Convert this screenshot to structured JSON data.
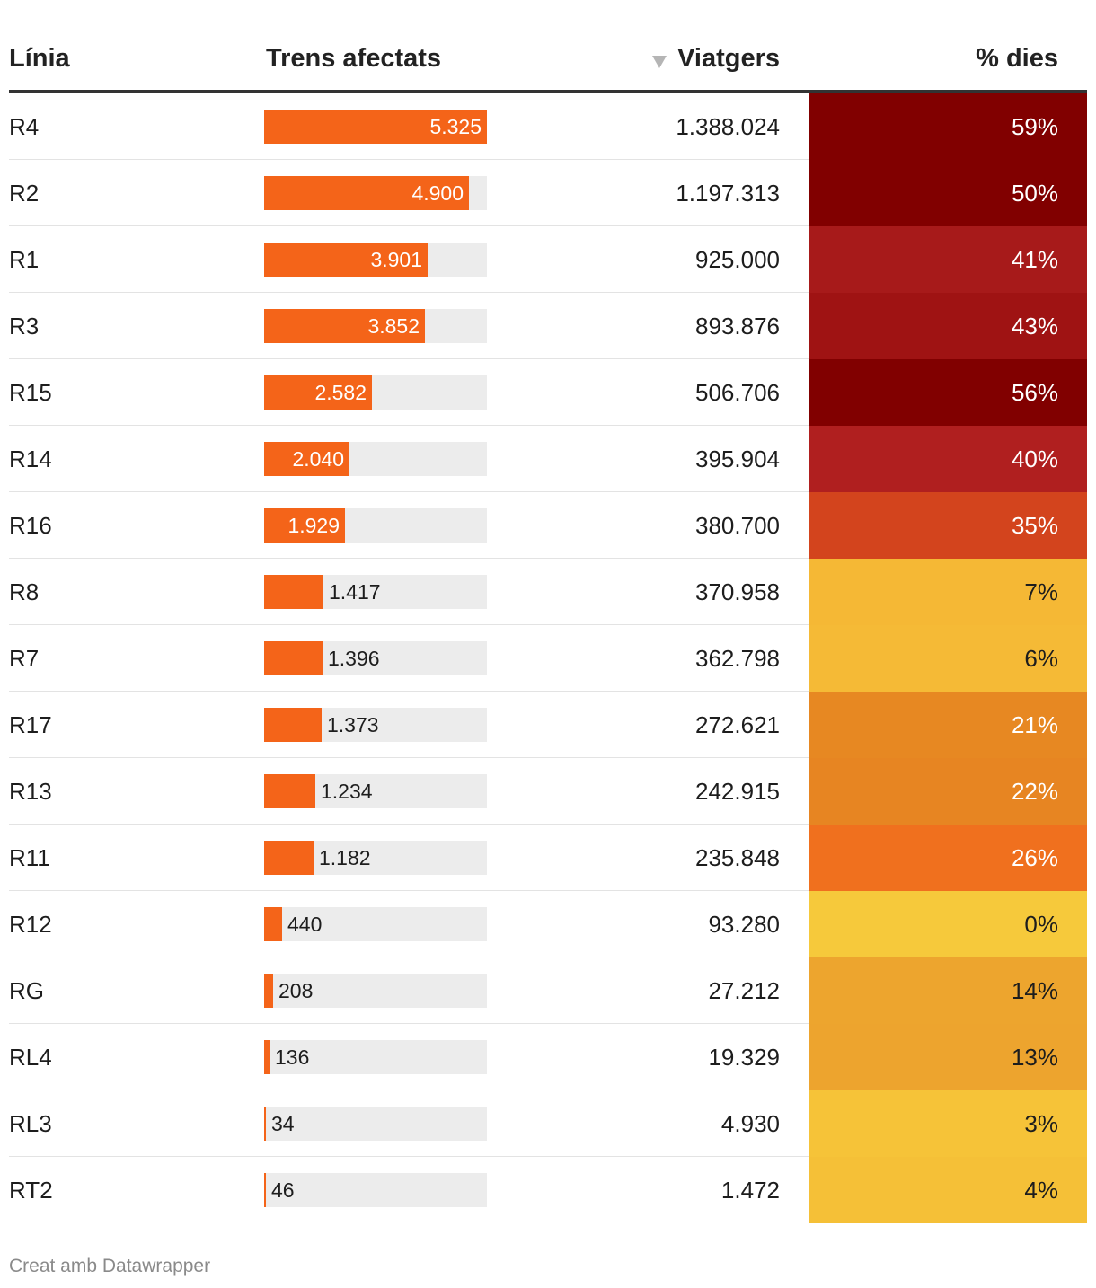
{
  "chart_data": {
    "type": "table",
    "columns": [
      "Línia",
      "Trens afectats",
      "Viatgers",
      "% dies"
    ],
    "sorted_by": "Viatgers",
    "bar_max": 5325,
    "rows": [
      {
        "line": "R4",
        "trens": 5325,
        "trens_label": "5.325",
        "viatgers": "1.388.024",
        "dies": 59,
        "dies_label": "59%",
        "color": "#810000"
      },
      {
        "line": "R2",
        "trens": 4900,
        "trens_label": "4.900",
        "viatgers": "1.197.313",
        "dies": 50,
        "dies_label": "50%",
        "color": "#810000"
      },
      {
        "line": "R1",
        "trens": 3901,
        "trens_label": "3.901",
        "viatgers": "925.000",
        "dies": 41,
        "dies_label": "41%",
        "color": "#a71a1a"
      },
      {
        "line": "R3",
        "trens": 3852,
        "trens_label": "3.852",
        "viatgers": "893.876",
        "dies": 43,
        "dies_label": "43%",
        "color": "#9f1313"
      },
      {
        "line": "R15",
        "trens": 2582,
        "trens_label": "2.582",
        "viatgers": "506.706",
        "dies": 56,
        "dies_label": "56%",
        "color": "#810000"
      },
      {
        "line": "R14",
        "trens": 2040,
        "trens_label": "2.040",
        "viatgers": "395.904",
        "dies": 40,
        "dies_label": "40%",
        "color": "#b01f1f"
      },
      {
        "line": "R16",
        "trens": 1929,
        "trens_label": "1.929",
        "viatgers": "380.700",
        "dies": 35,
        "dies_label": "35%",
        "color": "#d3441d"
      },
      {
        "line": "R8",
        "trens": 1417,
        "trens_label": "1.417",
        "viatgers": "370.958",
        "dies": 7,
        "dies_label": "7%",
        "color": "#f5b835"
      },
      {
        "line": "R7",
        "trens": 1396,
        "trens_label": "1.396",
        "viatgers": "362.798",
        "dies": 6,
        "dies_label": "6%",
        "color": "#f5ba36"
      },
      {
        "line": "R17",
        "trens": 1373,
        "trens_label": "1.373",
        "viatgers": "272.621",
        "dies": 21,
        "dies_label": "21%",
        "color": "#e78822"
      },
      {
        "line": "R13",
        "trens": 1234,
        "trens_label": "1.234",
        "viatgers": "242.915",
        "dies": 22,
        "dies_label": "22%",
        "color": "#e78522"
      },
      {
        "line": "R11",
        "trens": 1182,
        "trens_label": "1.182",
        "viatgers": "235.848",
        "dies": 26,
        "dies_label": "26%",
        "color": "#f0701e"
      },
      {
        "line": "R12",
        "trens": 440,
        "trens_label": "440",
        "viatgers": "93.280",
        "dies": 0,
        "dies_label": "0%",
        "color": "#f6c93b"
      },
      {
        "line": "RG",
        "trens": 208,
        "trens_label": "208",
        "viatgers": "27.212",
        "dies": 14,
        "dies_label": "14%",
        "color": "#eda52e"
      },
      {
        "line": "RL4",
        "trens": 136,
        "trens_label": "136",
        "viatgers": "19.329",
        "dies": 13,
        "dies_label": "13%",
        "color": "#eda42e"
      },
      {
        "line": "RL3",
        "trens": 34,
        "trens_label": "34",
        "viatgers": "4.930",
        "dies": 3,
        "dies_label": "3%",
        "color": "#f6c338"
      },
      {
        "line": "RT2",
        "trens": 46,
        "trens_label": "46",
        "viatgers": "1.472",
        "dies": 4,
        "dies_label": "4%",
        "color": "#f5c037"
      }
    ]
  },
  "footer": "Creat amb Datawrapper",
  "colors": {
    "bar": "#f46419",
    "bar_track": "#ececec",
    "header_rule": "#333333"
  }
}
